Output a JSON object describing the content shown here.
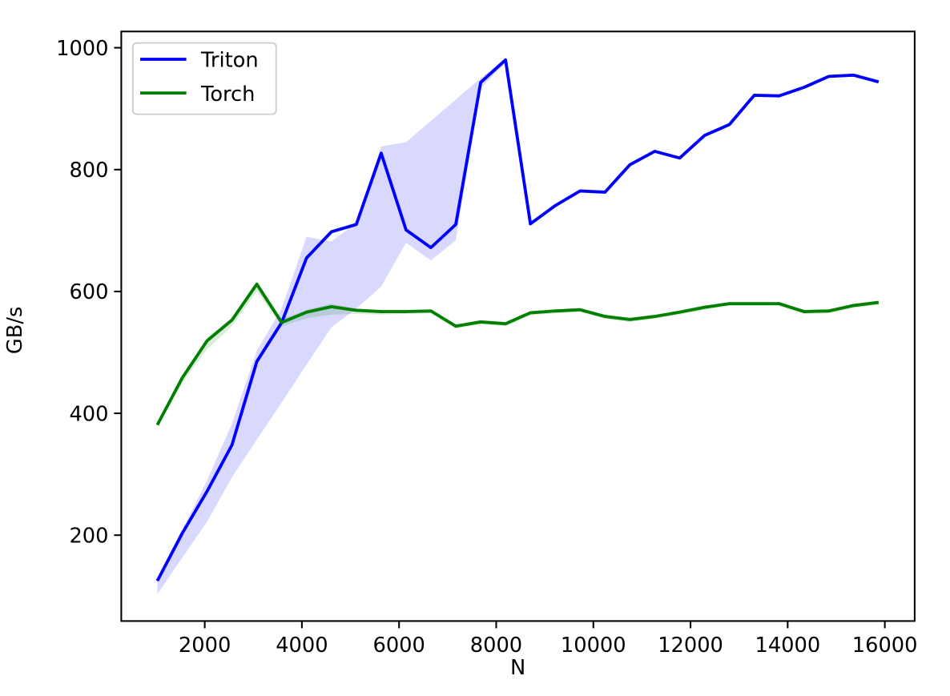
{
  "chart_data": {
    "type": "line",
    "title": "",
    "xlabel": "N",
    "ylabel": "GB/s",
    "x": [
      1024,
      1536,
      2048,
      2560,
      3072,
      3584,
      4096,
      4608,
      5120,
      5632,
      6144,
      6656,
      7168,
      7680,
      8192,
      8704,
      9216,
      9728,
      10240,
      10752,
      11264,
      11776,
      12288,
      12800,
      13312,
      13824,
      14336,
      14848,
      15360,
      15872
    ],
    "series": [
      {
        "name": "Triton",
        "color": "#0000ff",
        "values": [
          125,
          203,
          272,
          348,
          485,
          549,
          655,
          698,
          710,
          827,
          701,
          672,
          710,
          943,
          980,
          711,
          741,
          765,
          763,
          808,
          830,
          819,
          856,
          874,
          922,
          921,
          935,
          953,
          955,
          944
        ],
        "band_min": [
          103,
          163,
          222,
          295,
          357,
          418,
          480,
          541,
          572,
          608,
          680,
          651,
          684,
          934,
          975,
          711,
          741,
          765,
          763,
          808,
          830,
          819,
          856,
          874,
          922,
          921,
          935,
          953,
          955,
          944
        ],
        "band_max": [
          130,
          208,
          290,
          383,
          503,
          572,
          690,
          682,
          713,
          838,
          845,
          880,
          915,
          950,
          983,
          711,
          741,
          765,
          763,
          808,
          830,
          819,
          856,
          874,
          922,
          921,
          935,
          953,
          955,
          944
        ]
      },
      {
        "name": "Torch",
        "color": "#008000",
        "values": [
          381,
          458,
          519,
          553,
          612,
          549,
          566,
          575,
          569,
          567,
          567,
          568,
          543,
          550,
          547,
          565,
          568,
          570,
          559,
          554,
          559,
          566,
          574,
          580,
          580,
          580,
          567,
          568,
          577,
          582
        ],
        "band_min": [
          378,
          450,
          505,
          543,
          600,
          543,
          556,
          562,
          563,
          562,
          563,
          564,
          539,
          546,
          543,
          561,
          564,
          566,
          555,
          550,
          555,
          562,
          570,
          576,
          576,
          576,
          563,
          564,
          573,
          578
        ],
        "band_max": [
          383,
          462,
          524,
          557,
          616,
          555,
          570,
          580,
          572,
          570,
          570,
          571,
          546,
          553,
          550,
          568,
          571,
          573,
          562,
          557,
          562,
          569,
          577,
          583,
          583,
          583,
          570,
          571,
          580,
          585
        ]
      }
    ],
    "band_alpha": 0.15,
    "xlim": [
      281.6,
      16614.4
    ],
    "ylim": [
      59.1,
      1026.7
    ],
    "xticks": [
      2000,
      4000,
      6000,
      8000,
      10000,
      12000,
      14000,
      16000
    ],
    "yticks": [
      200,
      400,
      600,
      800,
      1000
    ],
    "grid": false,
    "legend": {
      "position": "upper-left",
      "entries": [
        "Triton",
        "Torch"
      ],
      "frame_color": "#cccccc",
      "background": "#ffffff"
    },
    "axis_color": "#000000",
    "background": "#ffffff"
  }
}
